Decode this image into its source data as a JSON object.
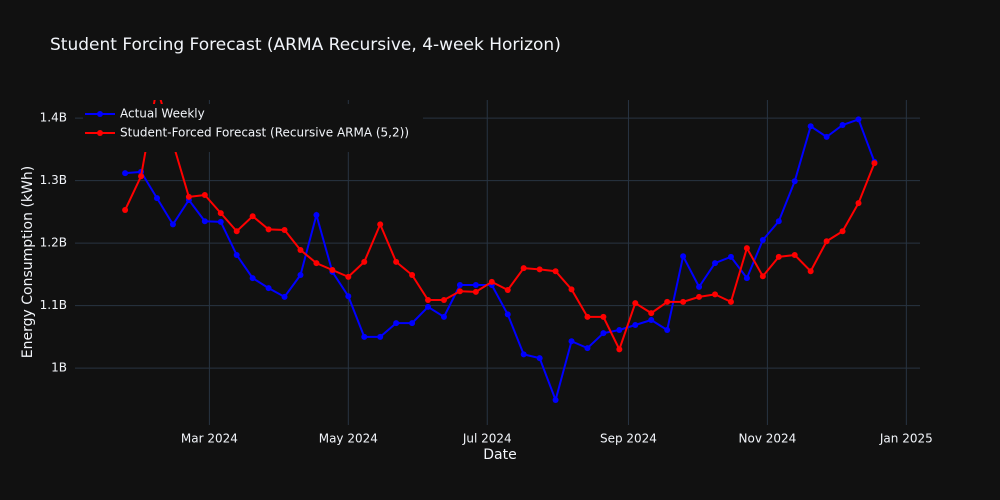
{
  "chart_data": {
    "type": "line",
    "title": "Student Forcing Forecast (ARMA Recursive, 4-week Horizon)",
    "x_label": "Date",
    "y_label": "Energy Consumption (kWh)",
    "x": [
      "2024-01-24",
      "2024-01-31",
      "2024-02-07",
      "2024-02-14",
      "2024-02-21",
      "2024-02-28",
      "2024-03-06",
      "2024-03-13",
      "2024-03-20",
      "2024-03-27",
      "2024-04-03",
      "2024-04-10",
      "2024-04-17",
      "2024-04-24",
      "2024-05-01",
      "2024-05-08",
      "2024-05-15",
      "2024-05-22",
      "2024-05-29",
      "2024-06-05",
      "2024-06-12",
      "2024-06-19",
      "2024-06-26",
      "2024-07-03",
      "2024-07-10",
      "2024-07-17",
      "2024-07-24",
      "2024-07-31",
      "2024-08-07",
      "2024-08-14",
      "2024-08-21",
      "2024-08-28",
      "2024-09-04",
      "2024-09-11",
      "2024-09-18",
      "2024-09-25",
      "2024-10-02",
      "2024-10-09",
      "2024-10-16",
      "2024-10-23",
      "2024-10-30",
      "2024-11-06",
      "2024-11-13",
      "2024-11-20",
      "2024-11-27",
      "2024-12-04",
      "2024-12-11",
      "2024-12-18"
    ],
    "series": [
      {
        "name": "Actual Weekly",
        "color": "#0000ff",
        "values": [
          1312000000,
          1314000000,
          1272000000,
          1230000000,
          1269000000,
          1235000000,
          1234000000,
          1181000000,
          1144000000,
          1128000000,
          1114000000,
          1149000000,
          1245000000,
          1154000000,
          1115000000,
          1050000000,
          1050000000,
          1072000000,
          1072000000,
          1098000000,
          1082000000,
          1133000000,
          1133000000,
          1133000000,
          1086000000,
          1022000000,
          1016000000,
          949000000,
          1043000000,
          1032000000,
          1056000000,
          1061000000,
          1069000000,
          1077000000,
          1061000000,
          1179000000,
          1130000000,
          1168000000,
          1178000000,
          1144000000,
          1205000000,
          1235000000,
          1299000000,
          1387000000,
          1370000000,
          1389000000,
          1398000000,
          1330000000
        ]
      },
      {
        "name": "Student-Forced Forecast (Recursive ARMA (5,2))",
        "color": "#ff0000",
        "values": [
          1253000000,
          1307000000,
          1450000000,
          1360000000,
          1274000000,
          1277000000,
          1248000000,
          1219000000,
          1243000000,
          1222000000,
          1221000000,
          1189000000,
          1168000000,
          1157000000,
          1146000000,
          1170000000,
          1230000000,
          1170000000,
          1149000000,
          1109000000,
          1109000000,
          1123000000,
          1122000000,
          1138000000,
          1125000000,
          1160000000,
          1158000000,
          1155000000,
          1126000000,
          1082000000,
          1082000000,
          1030000000,
          1104000000,
          1088000000,
          1106000000,
          1106000000,
          1114000000,
          1118000000,
          1106000000,
          1192000000,
          1147000000,
          1178000000,
          1181000000,
          1155000000,
          1203000000,
          1219000000,
          1264000000,
          1328000000
        ]
      }
    ],
    "xlim": [
      "2024-01-02",
      "2025-01-07"
    ],
    "xticks": [
      {
        "value": "2024-03-01",
        "label": "Mar 2024"
      },
      {
        "value": "2024-05-01",
        "label": "May 2024"
      },
      {
        "value": "2024-07-01",
        "label": "Jul 2024"
      },
      {
        "value": "2024-09-01",
        "label": "Sep 2024"
      },
      {
        "value": "2024-11-01",
        "label": "Nov 2024"
      },
      {
        "value": "2025-01-01",
        "label": "Jan 2025"
      }
    ],
    "ylim": [
      909000000,
      1429000000
    ],
    "yticks": [
      {
        "value": 1000000000,
        "label": "1B"
      },
      {
        "value": 1100000000,
        "label": "1.1B"
      },
      {
        "value": 1200000000,
        "label": "1.2B"
      },
      {
        "value": 1300000000,
        "label": "1.3B"
      },
      {
        "value": 1400000000,
        "label": "1.4B"
      }
    ],
    "grid": true,
    "legend": "top-left"
  }
}
